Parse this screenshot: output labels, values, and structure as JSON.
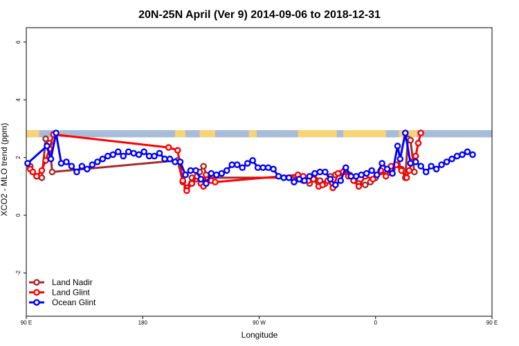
{
  "chart_data": {
    "type": "line",
    "title": "20N-25N April (Ver 9)   2014-09-06 to 2018-12-31",
    "xlabel": "Longitude",
    "ylabel": "XCO2 - MLO trend (ppm)",
    "xlim": [
      90,
      450
    ],
    "ylim": [
      -3.5,
      6.5
    ],
    "x_ticks": [
      {
        "value": 90,
        "label": "90 E"
      },
      {
        "value": 180,
        "label": "180"
      },
      {
        "value": 270,
        "label": "90 W"
      },
      {
        "value": 360,
        "label": "0"
      },
      {
        "value": 450,
        "label": "90 E"
      },
      {
        "value": 540,
        "label": "180"
      }
    ],
    "y_ticks": [
      {
        "value": -2,
        "label": "-2"
      },
      {
        "value": 0,
        "label": "0"
      },
      {
        "value": 2,
        "label": "2"
      },
      {
        "value": 4,
        "label": "4"
      },
      {
        "value": 6,
        "label": "6"
      }
    ],
    "map_strip": {
      "ymin": 2.7,
      "ymax": 2.95,
      "ocean_color": "#a7bcd8",
      "land_color": "#f7d37a"
    },
    "legend_position": "bottom-left",
    "series": [
      {
        "name": "Land Nadir",
        "color": "#a52a2a",
        "points": [
          [
            93,
            1.7
          ],
          [
            95,
            1.5
          ],
          [
            98,
            1.35
          ],
          [
            102,
            1.3
          ],
          [
            105,
            2.65
          ],
          [
            108,
            2.5
          ],
          [
            110,
            1.5
          ],
          [
            207,
            1.9
          ],
          [
            211,
            1.15
          ],
          [
            214,
            0.95
          ],
          [
            218,
            1.3
          ],
          [
            221,
            1.25
          ],
          [
            224,
            1.5
          ],
          [
            227,
            1.7
          ],
          [
            230,
            1.3
          ],
          [
            300,
            1.3
          ],
          [
            304,
            1.2
          ],
          [
            309,
            1.1
          ],
          [
            313,
            1.25
          ],
          [
            317,
            1.2
          ],
          [
            321,
            1.1
          ],
          [
            325,
            1.35
          ],
          [
            329,
            1.4
          ],
          [
            332,
            1.45
          ],
          [
            336,
            1.55
          ],
          [
            340,
            1.4
          ],
          [
            344,
            1.2
          ],
          [
            347,
            1.1
          ],
          [
            352,
            1.05
          ],
          [
            356,
            1.15
          ],
          [
            360,
            1.3
          ],
          [
            364,
            1.5
          ],
          [
            369,
            1.45
          ],
          [
            373,
            1.6
          ],
          [
            377,
            1.75
          ],
          [
            380,
            1.6
          ],
          [
            383,
            1.3
          ],
          [
            385,
            2.65
          ],
          [
            387,
            2.6
          ],
          [
            390,
            1.5
          ]
        ]
      },
      {
        "name": "Land Glint",
        "color": "#ff0000",
        "points": [
          [
            93,
            1.6
          ],
          [
            95,
            1.5
          ],
          [
            98,
            1.35
          ],
          [
            102,
            1.55
          ],
          [
            105,
            1.9
          ],
          [
            108,
            2.3
          ],
          [
            111,
            2.8
          ],
          [
            200,
            2.35
          ],
          [
            207,
            2.25
          ],
          [
            211,
            1.2
          ],
          [
            214,
            0.85
          ],
          [
            218,
            1.1
          ],
          [
            222,
            1.35
          ],
          [
            225,
            1.1
          ],
          [
            227,
            1.0
          ],
          [
            229,
            1.4
          ],
          [
            233,
            1.2
          ],
          [
            236,
            1.15
          ],
          [
            300,
            1.4
          ],
          [
            304,
            1.35
          ],
          [
            308,
            1.2
          ],
          [
            312,
            1.25
          ],
          [
            316,
            1.0
          ],
          [
            319,
            1.05
          ],
          [
            323,
            1.2
          ],
          [
            327,
            0.95
          ],
          [
            331,
            1.45
          ],
          [
            335,
            1.5
          ],
          [
            339,
            1.35
          ],
          [
            343,
            1.2
          ],
          [
            347,
            1.0
          ],
          [
            352,
            1.35
          ],
          [
            358,
            1.25
          ],
          [
            364,
            1.55
          ],
          [
            368,
            1.35
          ],
          [
            372,
            1.7
          ],
          [
            376,
            1.75
          ],
          [
            380,
            1.55
          ],
          [
            384,
            1.3
          ],
          [
            386,
            1.55
          ],
          [
            388,
            1.85
          ],
          [
            391,
            2.05
          ],
          [
            393,
            2.5
          ],
          [
            395,
            2.85
          ]
        ]
      },
      {
        "name": "Ocean Glint",
        "color": "#0000ff",
        "points": [
          [
            91,
            1.8
          ],
          [
            106,
            2.4
          ],
          [
            109,
            1.95
          ],
          [
            113,
            2.85
          ],
          [
            117,
            1.8
          ],
          [
            121,
            1.85
          ],
          [
            125,
            1.7
          ],
          [
            129,
            1.5
          ],
          [
            133,
            1.7
          ],
          [
            137,
            1.6
          ],
          [
            141,
            1.75
          ],
          [
            145,
            1.85
          ],
          [
            149,
            1.95
          ],
          [
            153,
            2.05
          ],
          [
            157,
            2.1
          ],
          [
            161,
            2.2
          ],
          [
            165,
            2.05
          ],
          [
            169,
            2.2
          ],
          [
            173,
            2.15
          ],
          [
            177,
            2.1
          ],
          [
            181,
            2.2
          ],
          [
            185,
            2.05
          ],
          [
            189,
            2.05
          ],
          [
            193,
            2.15
          ],
          [
            197,
            1.95
          ],
          [
            201,
            1.95
          ],
          [
            205,
            1.85
          ],
          [
            209,
            1.85
          ],
          [
            213,
            1.4
          ],
          [
            217,
            1.55
          ],
          [
            221,
            1.55
          ],
          [
            225,
            1.25
          ],
          [
            229,
            1.1
          ],
          [
            233,
            1.45
          ],
          [
            237,
            1.4
          ],
          [
            241,
            1.45
          ],
          [
            245,
            1.55
          ],
          [
            249,
            1.75
          ],
          [
            253,
            1.75
          ],
          [
            257,
            1.65
          ],
          [
            261,
            1.8
          ],
          [
            265,
            1.9
          ],
          [
            269,
            1.65
          ],
          [
            273,
            1.65
          ],
          [
            277,
            1.65
          ],
          [
            281,
            1.6
          ],
          [
            285,
            1.35
          ],
          [
            289,
            1.3
          ],
          [
            293,
            1.3
          ],
          [
            297,
            1.15
          ],
          [
            301,
            1.25
          ],
          [
            305,
            1.2
          ],
          [
            309,
            1.35
          ],
          [
            313,
            1.45
          ],
          [
            317,
            1.5
          ],
          [
            321,
            1.5
          ],
          [
            325,
            1.25
          ],
          [
            329,
            1.05
          ],
          [
            333,
            1.2
          ],
          [
            337,
            1.65
          ],
          [
            341,
            1.35
          ],
          [
            345,
            1.35
          ],
          [
            349,
            1.4
          ],
          [
            353,
            1.45
          ],
          [
            357,
            1.55
          ],
          [
            361,
            1.4
          ],
          [
            365,
            1.8
          ],
          [
            369,
            1.6
          ],
          [
            373,
            1.45
          ],
          [
            377,
            2.4
          ],
          [
            379,
            1.95
          ],
          [
            383,
            2.85
          ],
          [
            387,
            1.8
          ],
          [
            391,
            1.85
          ],
          [
            395,
            1.7
          ],
          [
            399,
            1.5
          ],
          [
            403,
            1.7
          ],
          [
            407,
            1.6
          ],
          [
            411,
            1.75
          ],
          [
            415,
            1.85
          ],
          [
            419,
            1.95
          ],
          [
            423,
            2.05
          ],
          [
            427,
            2.1
          ],
          [
            431,
            2.2
          ],
          [
            435,
            2.1
          ]
        ]
      }
    ]
  }
}
